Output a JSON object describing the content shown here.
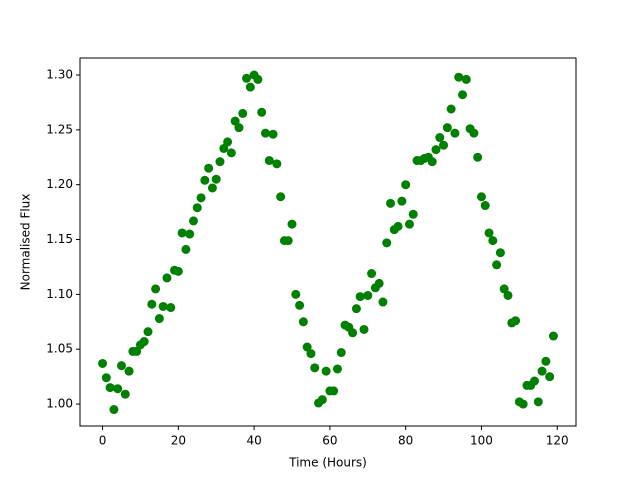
{
  "chart_data": {
    "type": "scatter",
    "xlabel": "Time (Hours)",
    "ylabel": "Normalised Flux",
    "color": "#008000",
    "x": [
      0,
      1,
      2,
      3,
      4,
      5,
      6,
      7,
      8,
      9,
      10,
      11,
      12,
      13,
      14,
      15,
      16,
      17,
      18,
      19,
      20,
      21,
      22,
      23,
      24,
      25,
      26,
      27,
      28,
      29,
      30,
      31,
      32,
      33,
      34,
      35,
      36,
      37,
      38,
      39,
      40,
      41,
      42,
      43,
      44,
      45,
      46,
      47,
      48,
      49,
      50,
      51,
      52,
      53,
      54,
      55,
      56,
      57,
      58,
      59,
      60,
      61,
      62,
      63,
      64,
      65,
      66,
      67,
      68,
      69,
      70,
      71,
      72,
      73,
      74,
      75,
      76,
      77,
      78,
      79,
      80,
      81,
      82,
      83,
      84,
      85,
      86,
      87,
      88,
      89,
      90,
      91,
      92,
      93,
      94,
      95,
      96,
      97,
      98,
      99,
      100,
      101,
      102,
      103,
      104,
      105,
      106,
      107,
      108,
      109,
      110,
      111,
      112,
      113,
      114,
      115,
      116,
      117,
      118,
      119
    ],
    "values": [
      1.037,
      1.024,
      1.015,
      0.995,
      1.014,
      1.035,
      1.009,
      1.03,
      1.048,
      1.048,
      1.054,
      1.057,
      1.066,
      1.091,
      1.105,
      1.078,
      1.089,
      1.115,
      1.088,
      1.122,
      1.121,
      1.156,
      1.141,
      1.155,
      1.167,
      1.179,
      1.188,
      1.204,
      1.215,
      1.197,
      1.205,
      1.221,
      1.233,
      1.239,
      1.229,
      1.258,
      1.252,
      1.265,
      1.297,
      1.289,
      1.3,
      1.296,
      1.266,
      1.247,
      1.222,
      1.246,
      1.219,
      1.189,
      1.149,
      1.149,
      1.164,
      1.1,
      1.09,
      1.075,
      1.052,
      1.046,
      1.033,
      1.001,
      1.004,
      1.03,
      1.012,
      1.012,
      1.032,
      1.047,
      1.072,
      1.07,
      1.065,
      1.087,
      1.098,
      1.068,
      1.099,
      1.119,
      1.106,
      1.11,
      1.093,
      1.147,
      1.183,
      1.159,
      1.162,
      1.185,
      1.2,
      1.164,
      1.173,
      1.222,
      1.222,
      1.224,
      1.225,
      1.221,
      1.232,
      1.243,
      1.236,
      1.252,
      1.269,
      1.247,
      1.298,
      1.282,
      1.296,
      1.251,
      1.247,
      1.225,
      1.189,
      1.181,
      1.156,
      1.149,
      1.127,
      1.138,
      1.105,
      1.099,
      1.074,
      1.076,
      1.002,
      1.0,
      1.017,
      1.017,
      1.021,
      1.002,
      1.03,
      1.039,
      1.025,
      1.062
    ],
    "xlim": [
      -5.95,
      124.95
    ],
    "xticks": [
      0,
      20,
      40,
      60,
      80,
      100,
      120
    ],
    "ylim": [
      0.98,
      1.3155
    ],
    "yticks": [
      {
        "value": 1,
        "label": "1.00"
      },
      1.05,
      {
        "value": 1.1,
        "label": "1.10"
      },
      1.15,
      {
        "value": 1.2,
        "label": "1.20"
      },
      1.25,
      {
        "value": 1.3,
        "label": "1.30"
      }
    ]
  }
}
